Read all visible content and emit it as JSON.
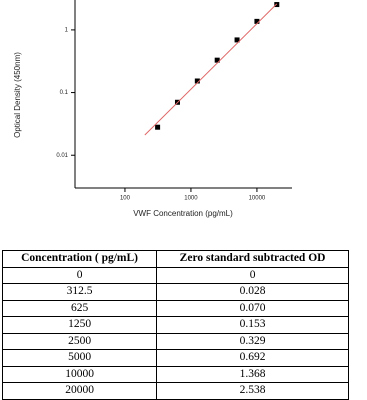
{
  "chart_data": {
    "type": "scatter",
    "x_label": "VWF Concentration (pg/mL)",
    "y_label": "Optical Density (450nm)",
    "xlog": true,
    "ylog": true,
    "xlim": [
      17.5,
      34000
    ],
    "ylim": [
      0.003,
      3
    ],
    "xticks": [
      100,
      1000,
      10000
    ],
    "yticks": [
      0.01,
      0.1,
      1
    ],
    "series": [
      {
        "color": "#000000",
        "marker": "square",
        "x": [
          312.5,
          625,
          1250,
          2500,
          5000,
          10000,
          20000
        ],
        "values": [
          0.028,
          0.07,
          0.153,
          0.329,
          0.692,
          1.368,
          2.538
        ]
      },
      {
        "color": "#e06666",
        "line": true,
        "x": [
          200,
          20000
        ],
        "values": [
          0.021,
          2.6
        ]
      }
    ]
  },
  "table": {
    "header": [
      "Concentration ( pg/mL)",
      "Zero standard subtracted OD"
    ],
    "rows": [
      [
        "0",
        "0"
      ],
      [
        "312.5",
        "0.028"
      ],
      [
        "625",
        "0.070"
      ],
      [
        "1250",
        "0.153"
      ],
      [
        "2500",
        "0.329"
      ],
      [
        "5000",
        "0.692"
      ],
      [
        "10000",
        "1.368"
      ],
      [
        "20000",
        "2.538"
      ]
    ]
  }
}
